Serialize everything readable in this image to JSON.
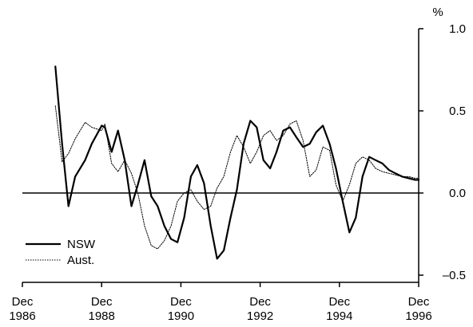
{
  "chart_data": {
    "type": "line",
    "title": "",
    "xlabel": "",
    "ylabel": "%",
    "ylim": [
      -0.5,
      1.0
    ],
    "yticks": [
      1.0,
      0.5,
      0.0,
      -0.5
    ],
    "ytick_labels": [
      "1.0",
      "0.5",
      "0.0",
      "–0.5"
    ],
    "xlim": [
      1986.917,
      1996.917
    ],
    "xticks": [
      1986.917,
      1988.917,
      1990.917,
      1992.917,
      1994.917,
      1996.917
    ],
    "xtick_labels": [
      {
        "month": "Dec",
        "year": "1986"
      },
      {
        "month": "Dec",
        "year": "1988"
      },
      {
        "month": "Dec",
        "year": "1990"
      },
      {
        "month": "Dec",
        "year": "1992"
      },
      {
        "month": "Dec",
        "year": "1994"
      },
      {
        "month": "Dec",
        "year": "1996"
      }
    ],
    "y_axis_side": "right",
    "grid": false,
    "zero_line": true,
    "legend": {
      "placement": "bottom-left"
    },
    "series": [
      {
        "name": "NSW",
        "style": "solid",
        "color": "#000000",
        "x": [
          1987.75,
          1987.92,
          1988.08,
          1988.25,
          1988.5,
          1988.67,
          1988.92,
          1989.0,
          1989.17,
          1989.33,
          1989.5,
          1989.67,
          1989.83,
          1990.0,
          1990.17,
          1990.33,
          1990.5,
          1990.67,
          1990.83,
          1991.0,
          1991.17,
          1991.33,
          1991.5,
          1991.67,
          1991.83,
          1992.0,
          1992.17,
          1992.33,
          1992.5,
          1992.67,
          1992.83,
          1993.0,
          1993.17,
          1993.33,
          1993.5,
          1993.67,
          1993.83,
          1994.0,
          1994.17,
          1994.33,
          1994.5,
          1994.67,
          1994.83,
          1995.0,
          1995.17,
          1995.33,
          1995.5,
          1995.67,
          1995.83,
          1996.0,
          1996.17,
          1996.33,
          1996.5,
          1996.67,
          1996.83,
          1996.92
        ],
        "values": [
          0.77,
          0.3,
          -0.08,
          0.1,
          0.2,
          0.3,
          0.41,
          0.4,
          0.25,
          0.38,
          0.2,
          -0.08,
          0.05,
          0.2,
          -0.02,
          -0.08,
          -0.2,
          -0.28,
          -0.3,
          -0.15,
          0.1,
          0.17,
          0.06,
          -0.2,
          -0.4,
          -0.35,
          -0.15,
          0.02,
          0.3,
          0.44,
          0.4,
          0.2,
          0.15,
          0.25,
          0.38,
          0.4,
          0.34,
          0.28,
          0.3,
          0.37,
          0.41,
          0.3,
          0.15,
          -0.05,
          -0.24,
          -0.15,
          0.1,
          0.22,
          0.2,
          0.18,
          0.14,
          0.12,
          0.1,
          0.09,
          0.08,
          0.08
        ]
      },
      {
        "name": "Aust.",
        "style": "dotted",
        "color": "#000000",
        "x": [
          1987.75,
          1987.92,
          1988.08,
          1988.25,
          1988.5,
          1988.67,
          1988.92,
          1989.0,
          1989.17,
          1989.33,
          1989.5,
          1989.67,
          1989.83,
          1990.0,
          1990.17,
          1990.33,
          1990.5,
          1990.67,
          1990.83,
          1991.0,
          1991.17,
          1991.33,
          1991.5,
          1991.67,
          1991.83,
          1992.0,
          1992.17,
          1992.33,
          1992.5,
          1992.67,
          1992.83,
          1993.0,
          1993.17,
          1993.33,
          1993.5,
          1993.67,
          1993.83,
          1994.0,
          1994.17,
          1994.33,
          1994.5,
          1994.67,
          1994.83,
          1995.0,
          1995.17,
          1995.33,
          1995.5,
          1995.67,
          1995.83,
          1996.0,
          1996.17,
          1996.33,
          1996.5,
          1996.67,
          1996.83,
          1996.92
        ],
        "values": [
          0.53,
          0.19,
          0.24,
          0.33,
          0.43,
          0.4,
          0.38,
          0.42,
          0.18,
          0.13,
          0.2,
          0.12,
          0.0,
          -0.2,
          -0.32,
          -0.34,
          -0.29,
          -0.2,
          -0.05,
          0.0,
          0.02,
          -0.05,
          -0.1,
          -0.08,
          0.03,
          0.1,
          0.25,
          0.35,
          0.28,
          0.18,
          0.25,
          0.35,
          0.38,
          0.32,
          0.35,
          0.42,
          0.44,
          0.32,
          0.1,
          0.14,
          0.28,
          0.26,
          0.05,
          -0.05,
          0.05,
          0.18,
          0.22,
          0.2,
          0.15,
          0.13,
          0.12,
          0.11,
          0.1,
          0.1,
          0.09,
          0.09
        ]
      }
    ]
  }
}
